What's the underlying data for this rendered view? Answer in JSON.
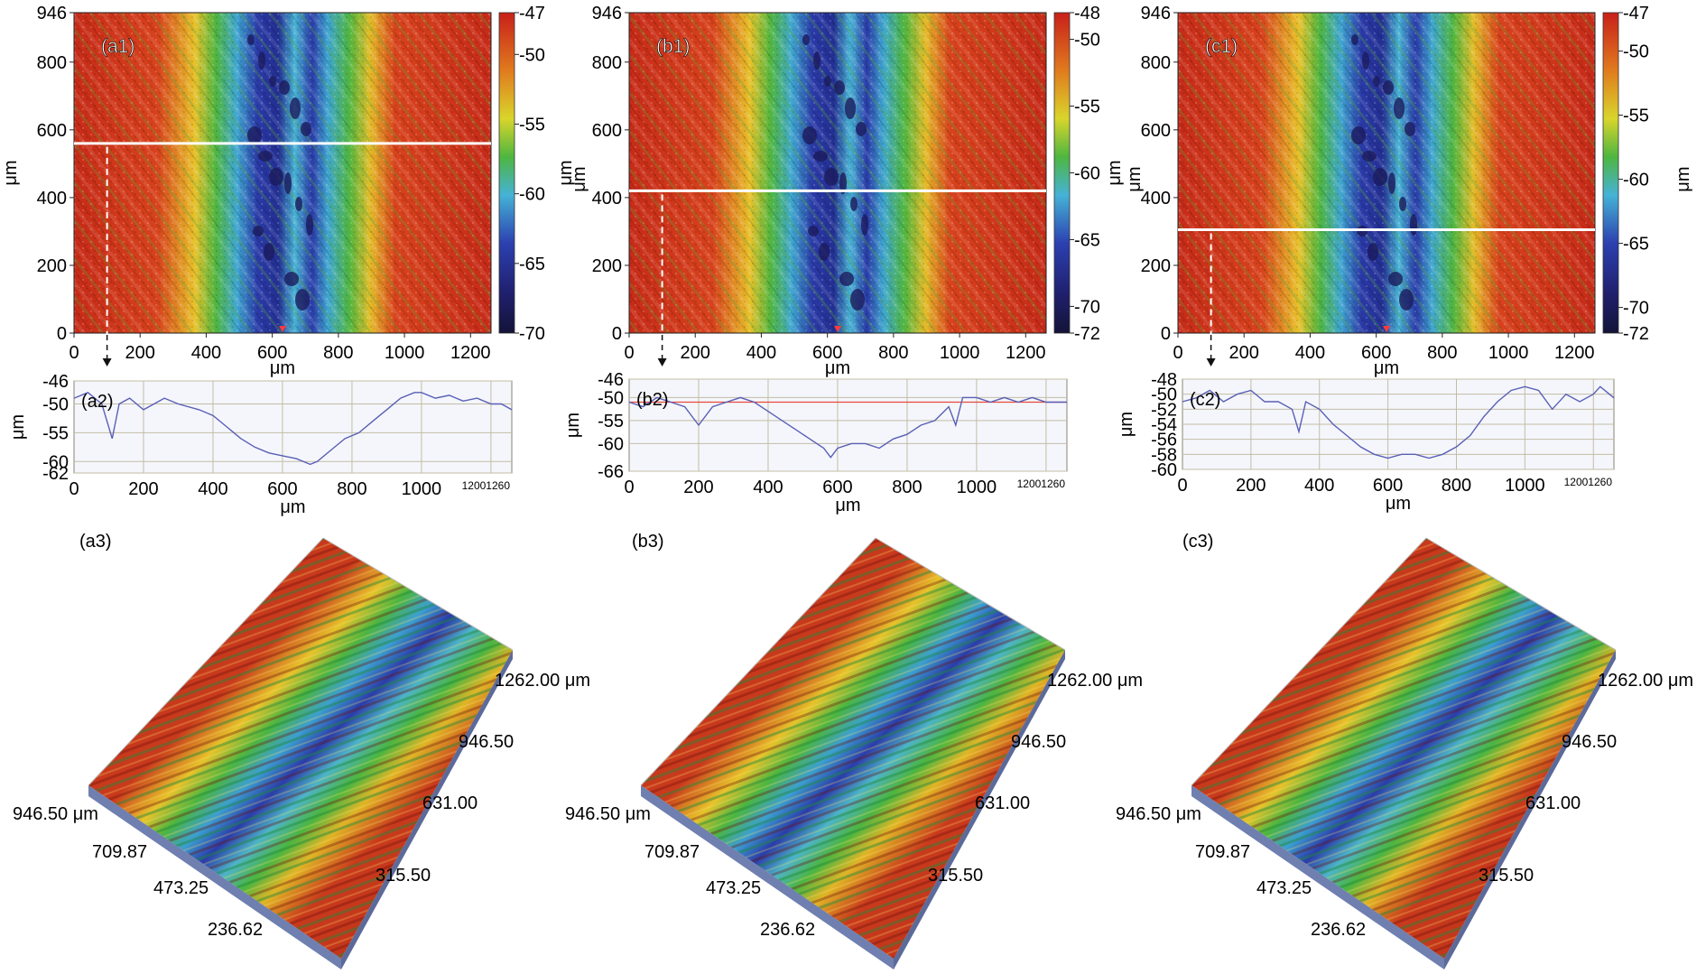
{
  "colors": {
    "red": "#d2301b",
    "orange": "#e27a1e",
    "yellow": "#e8d12a",
    "green": "#4fb640",
    "cyan": "#46b4d6",
    "blue": "#2c40b0",
    "navy": "#1b1a5c",
    "profile_line": "#5a5fb5",
    "cut_line": "#ffffff",
    "ref_line": "#e64a3a",
    "grid": "#c4bca4"
  },
  "panels": [
    {
      "id": "a",
      "map": {
        "label": "(a1)",
        "y_label": "μm",
        "x_label": "μm",
        "y_ticks": [
          "946",
          "800",
          "600",
          "400",
          "200",
          "0"
        ],
        "x_ticks": [
          "0",
          "200",
          "400",
          "600",
          "800",
          "1000",
          "1200"
        ],
        "colorbar_unit": "μm",
        "colorbar_ticks": [
          "-47",
          "-50",
          "-55",
          "-60",
          "-65",
          "-70"
        ],
        "colorbar_range": [
          -70,
          -47
        ],
        "cut_y_um": 560
      },
      "profile": {
        "label": "(a2)",
        "y_label": "μm",
        "x_label": "μm",
        "y_ticks": [
          "-46",
          "-50",
          "-55",
          "-60",
          "-62"
        ],
        "x_ticks": [
          "0",
          "200",
          "400",
          "600",
          "800",
          "1000"
        ],
        "x_end_label": "12001260",
        "ylim": [
          -62,
          -46
        ],
        "show_ref_line": false
      },
      "view3d": {
        "label": "(a3)",
        "right_axis": [
          "1262.00 μm",
          "946.50",
          "631.00",
          "315.50"
        ],
        "left_axis": [
          "946.50 μm",
          "709.87",
          "473.25",
          "236.62"
        ]
      }
    },
    {
      "id": "b",
      "map": {
        "label": "(b1)",
        "y_label": "μm",
        "x_label": "μm",
        "y_ticks": [
          "946",
          "800",
          "600",
          "400",
          "200",
          "0"
        ],
        "x_ticks": [
          "0",
          "200",
          "400",
          "600",
          "800",
          "1000",
          "1200"
        ],
        "colorbar_unit": "μm",
        "colorbar_ticks": [
          "-48",
          "-50",
          "-55",
          "-60",
          "-65",
          "-70",
          "-72"
        ],
        "colorbar_range": [
          -72,
          -48
        ],
        "cut_y_um": 420
      },
      "profile": {
        "label": "(b2)",
        "y_label": "μm",
        "x_label": "μm",
        "y_ticks": [
          "-46",
          "-50",
          "-55",
          "-60",
          "-66"
        ],
        "x_ticks": [
          "0",
          "200",
          "400",
          "600",
          "800",
          "1000"
        ],
        "x_end_label": "12001260",
        "ylim": [
          -66,
          -46
        ],
        "show_ref_line": true
      },
      "view3d": {
        "label": "(b3)",
        "right_axis": [
          "1262.00 μm",
          "946.50",
          "631.00",
          "315.50"
        ],
        "left_axis": [
          "946.50 μm",
          "709.87",
          "473.25",
          "236.62"
        ]
      }
    },
    {
      "id": "c",
      "map": {
        "label": "(c1)",
        "y_label": "μm",
        "x_label": "μm",
        "y_ticks": [
          "946",
          "800",
          "600",
          "400",
          "200",
          "0"
        ],
        "x_ticks": [
          "0",
          "200",
          "400",
          "600",
          "800",
          "1000",
          "1200"
        ],
        "colorbar_unit": "μm",
        "colorbar_ticks": [
          "-47",
          "-50",
          "-55",
          "-60",
          "-65",
          "-70",
          "-72"
        ],
        "colorbar_range": [
          -72,
          -47
        ],
        "cut_y_um": 305
      },
      "profile": {
        "label": "(c2)",
        "y_label": "μm",
        "x_label": "μm",
        "y_ticks": [
          "-48",
          "-50",
          "-52",
          "-54",
          "-56",
          "-58",
          "-60"
        ],
        "x_ticks": [
          "0",
          "200",
          "400",
          "600",
          "800",
          "1000"
        ],
        "x_end_label": "12001260",
        "ylim": [
          -60,
          -48
        ],
        "show_ref_line": false
      },
      "view3d": {
        "label": "(c3)",
        "right_axis": [
          "1262.00 μm",
          "946.50",
          "631.00",
          "315.50"
        ],
        "left_axis": [
          "946.50 μm",
          "709.87",
          "473.25",
          "236.62"
        ]
      }
    }
  ],
  "chart_data": [
    {
      "type": "line",
      "title": "(a2)",
      "xlabel": "μm",
      "ylabel": "μm",
      "xlim": [
        0,
        1260
      ],
      "ylim": [
        -62,
        -46
      ],
      "series": [
        {
          "x": [
            0,
            40,
            80,
            110,
            130,
            160,
            200,
            260,
            300,
            360,
            400,
            440,
            480,
            520,
            560,
            600,
            640,
            680,
            700,
            740,
            780,
            820,
            860,
            900,
            940,
            980,
            1000,
            1040,
            1080,
            1120,
            1160,
            1200,
            1230,
            1260
          ],
          "values": [
            -49,
            -48,
            -50,
            -56,
            -50,
            -49,
            -51,
            -49,
            -50,
            -51,
            -52,
            -54,
            -56,
            -57.5,
            -58.5,
            -59,
            -59.5,
            -60.5,
            -60,
            -58,
            -56,
            -55,
            -53,
            -51,
            -49,
            -48,
            -48,
            -49,
            -48.5,
            -49.5,
            -49,
            -50,
            -50,
            -51
          ]
        }
      ]
    },
    {
      "type": "line",
      "title": "(b2)",
      "xlabel": "μm",
      "ylabel": "μm",
      "xlim": [
        0,
        1260
      ],
      "ylim": [
        -66,
        -46
      ],
      "series": [
        {
          "x": [
            0,
            40,
            80,
            120,
            160,
            200,
            240,
            280,
            320,
            360,
            400,
            440,
            480,
            520,
            560,
            580,
            600,
            640,
            680,
            720,
            760,
            800,
            840,
            880,
            920,
            940,
            960,
            1000,
            1040,
            1080,
            1120,
            1160,
            1200,
            1230,
            1260
          ],
          "values": [
            -51,
            -52,
            -50,
            -51,
            -52,
            -56,
            -52,
            -51,
            -50,
            -51,
            -53,
            -55,
            -57,
            -59,
            -61,
            -63,
            -61,
            -60,
            -60,
            -61,
            -59,
            -58,
            -56,
            -55,
            -52,
            -56,
            -50,
            -50,
            -51,
            -50,
            -51,
            -50,
            -51,
            -51,
            -51
          ]
        }
      ]
    },
    {
      "type": "line",
      "title": "(c2)",
      "xlabel": "μm",
      "ylabel": "μm",
      "xlim": [
        0,
        1260
      ],
      "ylim": [
        -60,
        -48
      ],
      "series": [
        {
          "x": [
            0,
            40,
            80,
            120,
            160,
            200,
            240,
            280,
            320,
            340,
            360,
            400,
            440,
            480,
            520,
            560,
            600,
            640,
            680,
            720,
            760,
            800,
            840,
            880,
            920,
            960,
            1000,
            1040,
            1080,
            1120,
            1160,
            1200,
            1220,
            1260
          ],
          "values": [
            -51,
            -50.5,
            -49.5,
            -51,
            -50,
            -49.5,
            -51,
            -51,
            -52,
            -55,
            -51,
            -52,
            -54,
            -55.5,
            -57,
            -58,
            -58.5,
            -58,
            -58,
            -58.5,
            -58,
            -57,
            -55.5,
            -53,
            -51,
            -49.5,
            -49,
            -49.5,
            -52,
            -50,
            -51,
            -50,
            -49,
            -50.5
          ]
        }
      ]
    }
  ]
}
